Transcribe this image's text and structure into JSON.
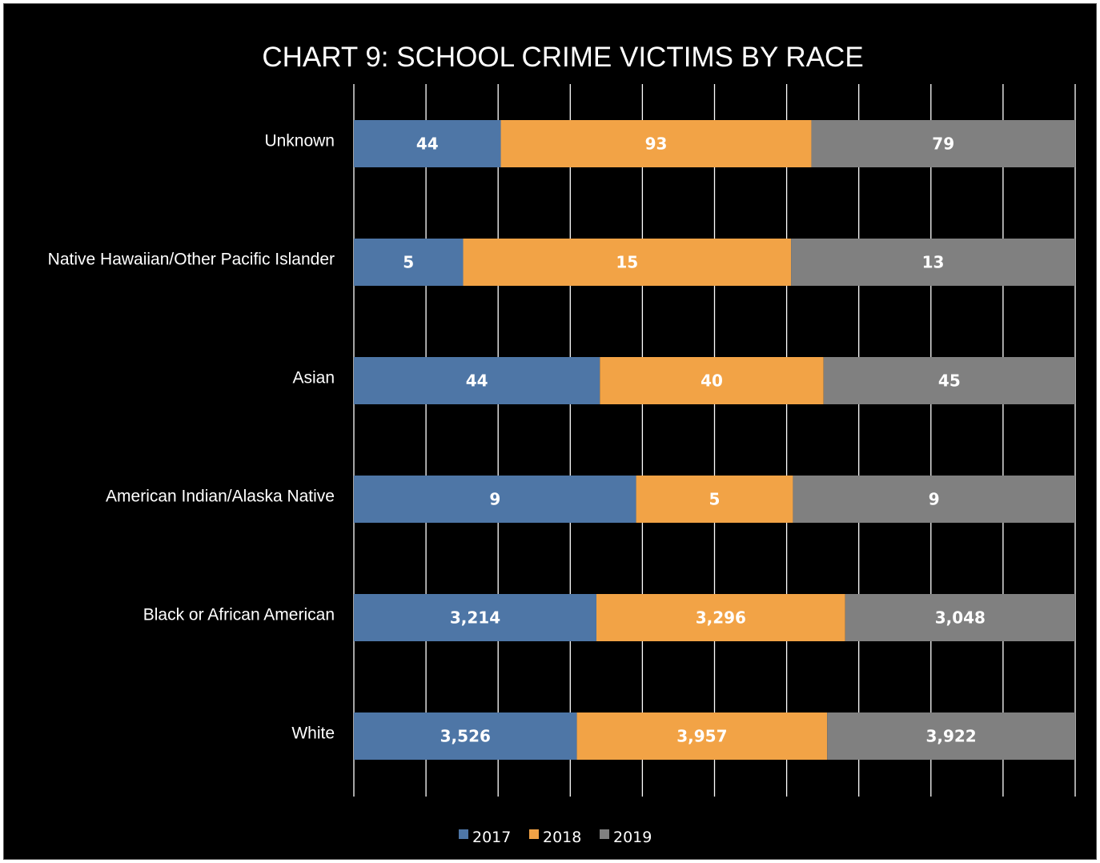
{
  "chart_data": {
    "type": "bar",
    "orientation": "horizontal",
    "stacked": "percent",
    "title": "CHART 9: SCHOOL CRIME VICTIMS BY RACE",
    "categories": [
      "Unknown",
      "Native Hawaiian/Other Pacific Islander",
      "Asian",
      "American Indian/Alaska Native",
      "Black or African American",
      "White"
    ],
    "series": [
      {
        "name": "2017",
        "color": "#4e76a6",
        "values": [
          44,
          5,
          44,
          9,
          3214,
          3526
        ],
        "labels": [
          "44",
          "5",
          "44",
          "9",
          "3,214",
          "3,526"
        ]
      },
      {
        "name": "2018",
        "color": "#f2a346",
        "values": [
          93,
          15,
          40,
          5,
          3296,
          3957
        ],
        "labels": [
          "93",
          "15",
          "40",
          "5",
          "3,296",
          "3,957"
        ]
      },
      {
        "name": "2019",
        "color": "#808080",
        "values": [
          79,
          13,
          45,
          9,
          3048,
          3922
        ],
        "labels": [
          "79",
          "13",
          "45",
          "9",
          "3,048",
          "3,922"
        ]
      }
    ],
    "xlim": [
      0,
      100
    ],
    "grid": true,
    "legend_position": "bottom",
    "data_labels": true,
    "background": "#000000",
    "text_color": "#ffffff",
    "grid_color": "#ffffff"
  }
}
